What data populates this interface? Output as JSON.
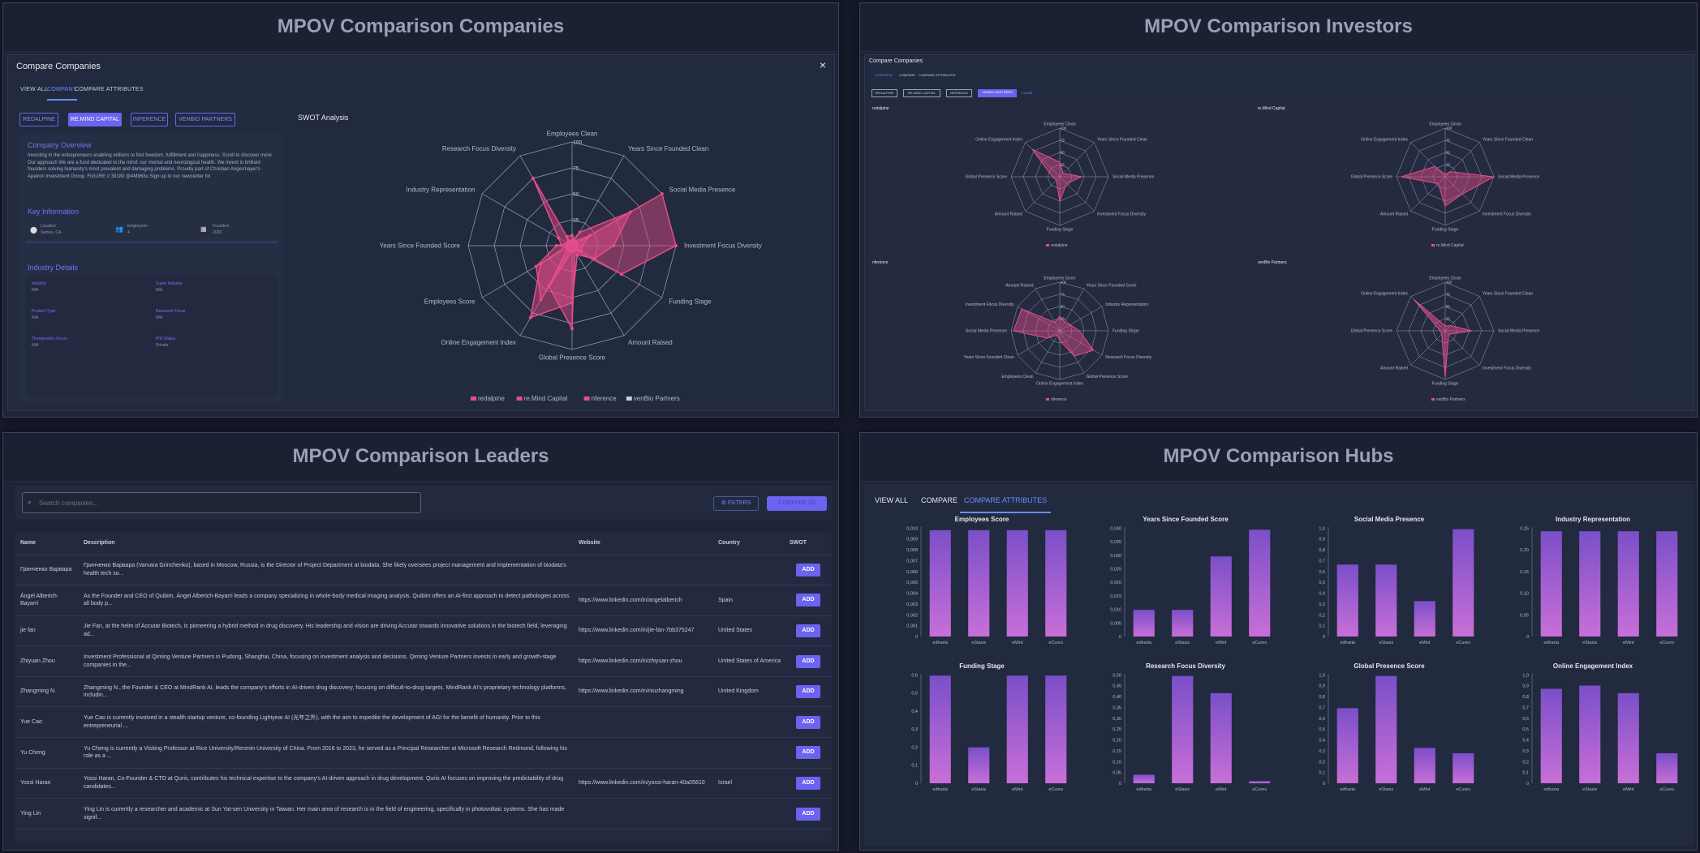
{
  "colors": {
    "accent": "#6c63f0",
    "pink": "#e84c8a",
    "bar": "#c86fd8",
    "barTop": "#7b4fc8"
  },
  "companies": {
    "title": "MPOV Comparison Companies",
    "dialog_title": "Compare Companies",
    "close": "×",
    "tabs": [
      "VIEW ALL",
      "COMPANY",
      "COMPARE ATTRIBUTES"
    ],
    "chips": [
      "REDALPINE",
      "RE.MIND CAPITAL",
      "INFERENCE",
      "VENBIO PARTNERS"
    ],
    "overview_title": "Company Overview",
    "overview_text": "Investing in the entrepreneurs enabling millions to find freedom, fulfillment and happiness. Scroll to discover more Our approach We are a fund dedicated to the mind: our mental and neurological health. We invest in brilliant founders solving humanity's most prevalent and damaging problems. Proudly part of Christian Angermayer's Apeiron Investment Group. FIGURE // 39180 @4M963u Sign up to our newsletter for",
    "key_info_title": "Key Information",
    "key_info": [
      {
        "icon": "location-icon",
        "label": "Location",
        "value": "Samos, CA"
      },
      {
        "icon": "people-icon",
        "label": "Employees",
        "value": "4"
      },
      {
        "icon": "calendar-icon",
        "label": "Founded",
        "value": "2020"
      }
    ],
    "industry_title": "Industry Details",
    "industry": [
      {
        "label": "Industry",
        "value": "N/A"
      },
      {
        "label": "Super Industry",
        "value": "N/A"
      },
      {
        "label": "Product Type",
        "value": "N/A"
      },
      {
        "label": "Research Focus",
        "value": "N/A"
      },
      {
        "label": "Therapeutics Focus",
        "value": "N/A"
      },
      {
        "label": "IPO Status",
        "value": "Private"
      }
    ],
    "swot_title": "SWOT Analysis",
    "ticks": [
      "25",
      "50",
      "75",
      "100"
    ],
    "axes": [
      "Employees Clean",
      "Years Since Founded Clean",
      "Social Media Presence",
      "Investment Focus Diversity",
      "Funding Stage",
      "Amount Raised",
      "Global Presence Score",
      "Online Engagement Index",
      "Employees Score",
      "Years Since Founded Score",
      "Industry Representation",
      "Research Focus Diversity"
    ],
    "legend": [
      "redalpine",
      "re.Mind Capital",
      "nference",
      "venBio Partners"
    ]
  },
  "investors": {
    "title": "MPOV Comparison Investors",
    "dialog_title": "Compare Companies",
    "tabs": [
      "OVERVIEW",
      "COMPARE",
      "COMPARE ATTRIBUTES"
    ],
    "chips": [
      "REDALPINE",
      "RE.MIND CAPITAL",
      "NFERENCE",
      "VENBIO PARTNERS",
      "CLEAR"
    ],
    "radars": [
      {
        "name": "redalpine",
        "legend": "redalpine",
        "axes": [
          "Employees Clean",
          "Years Since Founded Clean",
          "Social Media Presence",
          "Investment Focus Diversity",
          "Funding Stage",
          "Amount Raised",
          "Global Presence Score",
          "Online Engagement Index"
        ],
        "values": [
          0.3,
          0.1,
          0.45,
          0.2,
          0.5,
          0.1,
          0.15,
          0.8
        ]
      },
      {
        "name": "re.Mind Capital",
        "legend": "re.Mind Capital",
        "axes": [
          "Employees Clean",
          "Years Since Founded Clean",
          "Social Media Presence",
          "Investment Focus Diversity",
          "Funding Stage",
          "Amount Raised",
          "Global Presence Score",
          "Online Engagement Index"
        ],
        "values": [
          0.05,
          0.15,
          1.0,
          0.5,
          0.6,
          0.2,
          0.9,
          0.3
        ]
      },
      {
        "name": "nference",
        "legend": "nference",
        "axes": [
          "Employees Score",
          "Years Since Founded Score",
          "Industry Representation",
          "Funding Stage",
          "Research Focus Diversity",
          "Global Presence Score",
          "Online Engagement Index",
          "Employees Clean",
          "Years Since Founded Clean",
          "Social Media Presence",
          "Investment Focus Diversity",
          "Amount Raised"
        ],
        "values": [
          0.3,
          0.2,
          0.25,
          0.4,
          0.8,
          0.6,
          0.2,
          0.1,
          0.3,
          0.95,
          0.9,
          0.2
        ]
      },
      {
        "name": "venBio Partners",
        "legend": "venBio Partners",
        "axes": [
          "Employees Clean",
          "Years Since Founded Clean",
          "Social Media Presence",
          "Investment Focus Diversity",
          "Funding Stage",
          "Amount Raised",
          "Global Presence Score",
          "Online Engagement Index"
        ],
        "values": [
          0.1,
          0.15,
          0.55,
          0.1,
          0.95,
          0.1,
          0.1,
          0.9
        ]
      }
    ],
    "ticks": [
      "25",
      "50",
      "75",
      "100"
    ]
  },
  "leaders": {
    "title": "MPOV Comparison Leaders",
    "search_placeholder": "Search companies...",
    "filters": "FILTERS",
    "compare": "COMPARE (0)",
    "columns": [
      "Name",
      "Description",
      "Website",
      "Country",
      "SWOT"
    ],
    "add_label": "ADD",
    "rows": [
      {
        "name": "Гринченко Варвара",
        "desc": "Гринченко Варвара (Varvara Grinchenko), based in Moscow, Russia, is the Director of Project Department at biodata. She likely oversees project management and implementation of biodata's health tech so...",
        "web": "",
        "country": ""
      },
      {
        "name": "Ángel Alberich-Bayarri",
        "desc": "As the Founder and CEO of Quibim, Ángel Alberich-Bayarri leads a company specializing in whole-body medical imaging analysis. Quibim offers an AI-first approach to detect pathologies across all body p...",
        "web": "https://www.linkedin.com/in/angelalberich",
        "country": "Spain"
      },
      {
        "name": "jie fan",
        "desc": "Jie Fan, at the helm of Accutar Biotech, is pioneering a hybrid method in drug discovery. His leadership and vision are driving Accutar towards innovative solutions in the biotech field, leveraging ad...",
        "web": "https://www.linkedin.com/in/jie-fan-7bb375247",
        "country": "United States"
      },
      {
        "name": "Zhiyuan Zhou",
        "desc": "Investment Professional at Qiming Venture Partners in Pudong, Shanghai, China, focusing on investment analysis and decisions. Qiming Venture Partners invests in early and growth-stage companies in the...",
        "web": "https://www.linkedin.com/in/zhiyuan-zhou",
        "country": "United States of America"
      },
      {
        "name": "Zhangming N.",
        "desc": "Zhangming N., the Founder & CEO at MindRank AI, leads the company's efforts in AI-driven drug discovery, focusing on difficult-to-drug targets. MindRank AI's proprietary technology platforms, includin...",
        "web": "https://www.linkedin.com/in/niuzhangming",
        "country": "United Kingdom"
      },
      {
        "name": "Yue Cao",
        "desc": "Yue Cao is currently involved in a stealth startup venture, co-founding Lightyear AI (光年之外), with the aim to expedite the development of AGI for the benefit of humanity. Prior to this entrepreneurial ...",
        "web": "",
        "country": ""
      },
      {
        "name": "Yu Cheng",
        "desc": "Yu Cheng is currently a Visiting Professor at Rice University/Renmin University of China. From 2016 to 2023, he served as a Principal Researcher at Microsoft Research Redmond, following his role as a ...",
        "web": "",
        "country": ""
      },
      {
        "name": "Yossi Haran",
        "desc": "Yossi Haran, Co-Founder & CTO at Quris, contributes his technical expertise to the company's AI-driven approach in drug development. Quris AI focuses on improving the predictability of drug candidates...",
        "web": "https://www.linkedin.com/in/yossi-haran-40a05610",
        "country": "Israel"
      },
      {
        "name": "Ying Lin",
        "desc": "Ying Lin is currently a researcher and academic at Sun Yat-sen University in Taiwan. Her main area of research is in the field of engineering, specifically in photovoltaic systems. She has made signif...",
        "web": "",
        "country": ""
      }
    ]
  },
  "hubs": {
    "title": "MPOV Comparison Hubs",
    "tabs": [
      "VIEW ALL",
      "COMPARE",
      "COMPARE ATTRIBUTES"
    ],
    "chart_data": [
      {
        "type": "bar",
        "title": "Employees Score",
        "categories": [
          "edharta",
          "eStasis",
          "eMint",
          "eCures"
        ],
        "values": [
          0.0102,
          0.0102,
          0.0102,
          0.0102
        ],
        "ylim": [
          0,
          0.0105
        ],
        "yticks": [
          "0",
          "0,001",
          "0,002",
          "0,003",
          "0,004",
          "0,005",
          "0,006",
          "0,007",
          "0,008",
          "0,009",
          "0,010"
        ]
      },
      {
        "type": "bar",
        "title": "Years Since Founded Score",
        "categories": [
          "edharta",
          "eStasis",
          "eMint",
          "eCures"
        ],
        "values": [
          0.01,
          0.01,
          0.03,
          0.04
        ],
        "ylim": [
          0,
          0.041
        ],
        "yticks": [
          "0",
          "0,005",
          "0,010",
          "0,015",
          "0,020",
          "0,025",
          "0,030",
          "0,035",
          "0,040"
        ]
      },
      {
        "type": "bar",
        "title": "Social Media Presence",
        "categories": [
          "edharta",
          "eStasis",
          "eMint",
          "eCures"
        ],
        "values": [
          0.67,
          0.67,
          0.33,
          1.0
        ],
        "ylim": [
          0,
          1.02
        ],
        "yticks": [
          "0",
          "0,1",
          "0,2",
          "0,3",
          "0,4",
          "0,5",
          "0,6",
          "0,7",
          "0,8",
          "0,9",
          "1,0"
        ]
      },
      {
        "type": "bar",
        "title": "Industry Representation",
        "categories": [
          "edharta",
          "eStasis",
          "eMint",
          "eCures"
        ],
        "values": [
          0.25,
          0.25,
          0.25,
          0.25
        ],
        "ylim": [
          0,
          0.26
        ],
        "yticks": [
          "0",
          "0,05",
          "0,10",
          "0,15",
          "0,20",
          "0,25"
        ]
      },
      {
        "type": "bar",
        "title": "Funding Stage",
        "categories": [
          "edharta",
          "eStasis",
          "eMint",
          "eCures"
        ],
        "values": [
          0.6,
          0.2,
          0.6,
          0.6
        ],
        "ylim": [
          0,
          0.61
        ],
        "yticks": [
          "0",
          "0,1",
          "0,2",
          "0,3",
          "0,4",
          "0,5",
          "0,6"
        ]
      },
      {
        "type": "bar",
        "title": "Research Focus Diversity",
        "categories": [
          "edharta",
          "eStasis",
          "eMint",
          "eCures"
        ],
        "values": [
          0.04,
          0.5,
          0.42,
          0.01
        ],
        "ylim": [
          0,
          0.51
        ],
        "yticks": [
          "0",
          "0,05",
          "0,10",
          "0,15",
          "0,20",
          "0,25",
          "0,30",
          "0,35",
          "0,40",
          "0,45",
          "0,50"
        ]
      },
      {
        "type": "bar",
        "title": "Global Presence Score",
        "categories": [
          "edharta",
          "eStasis",
          "eMint",
          "eCures"
        ],
        "values": [
          0.7,
          1.0,
          0.33,
          0.28
        ],
        "ylim": [
          0,
          1.02
        ],
        "yticks": [
          "0",
          "0,1",
          "0,2",
          "0,3",
          "0,4",
          "0,5",
          "0,6",
          "0,7",
          "0,8",
          "0,9",
          "1,0"
        ]
      },
      {
        "type": "bar",
        "title": "Online Engagement Index",
        "categories": [
          "edharta",
          "eStasis",
          "eMint",
          "eCures"
        ],
        "values": [
          0.88,
          0.91,
          0.84,
          0.28
        ],
        "ylim": [
          0,
          1.02
        ],
        "yticks": [
          "0",
          "0,1",
          "0,2",
          "0,3",
          "0,4",
          "0,5",
          "0,6",
          "0,7",
          "0,8",
          "0,9",
          "1,0"
        ]
      }
    ]
  },
  "chart_data": {
    "type": "radar",
    "title": "SWOT Analysis",
    "axes": [
      "Employees Clean",
      "Years Since Founded Clean",
      "Social Media Presence",
      "Investment Focus Diversity",
      "Funding Stage",
      "Amount Raised",
      "Global Presence Score",
      "Online Engagement Index",
      "Employees Score",
      "Years Since Founded Score",
      "Industry Representation",
      "Research Focus Diversity"
    ],
    "range": [
      0,
      100
    ],
    "series": [
      {
        "name": "redalpine",
        "values": [
          0,
          0,
          100,
          100,
          55,
          5,
          80,
          45,
          5,
          10,
          15,
          75
        ]
      },
      {
        "name": "re.Mind Capital",
        "values": [
          5,
          15,
          65,
          40,
          25,
          10,
          55,
          80,
          35,
          5,
          5,
          5
        ]
      },
      {
        "name": "nference",
        "values": [
          10,
          5,
          20,
          10,
          10,
          5,
          5,
          60,
          40,
          15,
          5,
          10
        ]
      },
      {
        "name": "venBio Partners",
        "values": [
          5,
          5,
          5,
          5,
          5,
          5,
          5,
          5,
          5,
          5,
          5,
          5
        ]
      }
    ]
  }
}
